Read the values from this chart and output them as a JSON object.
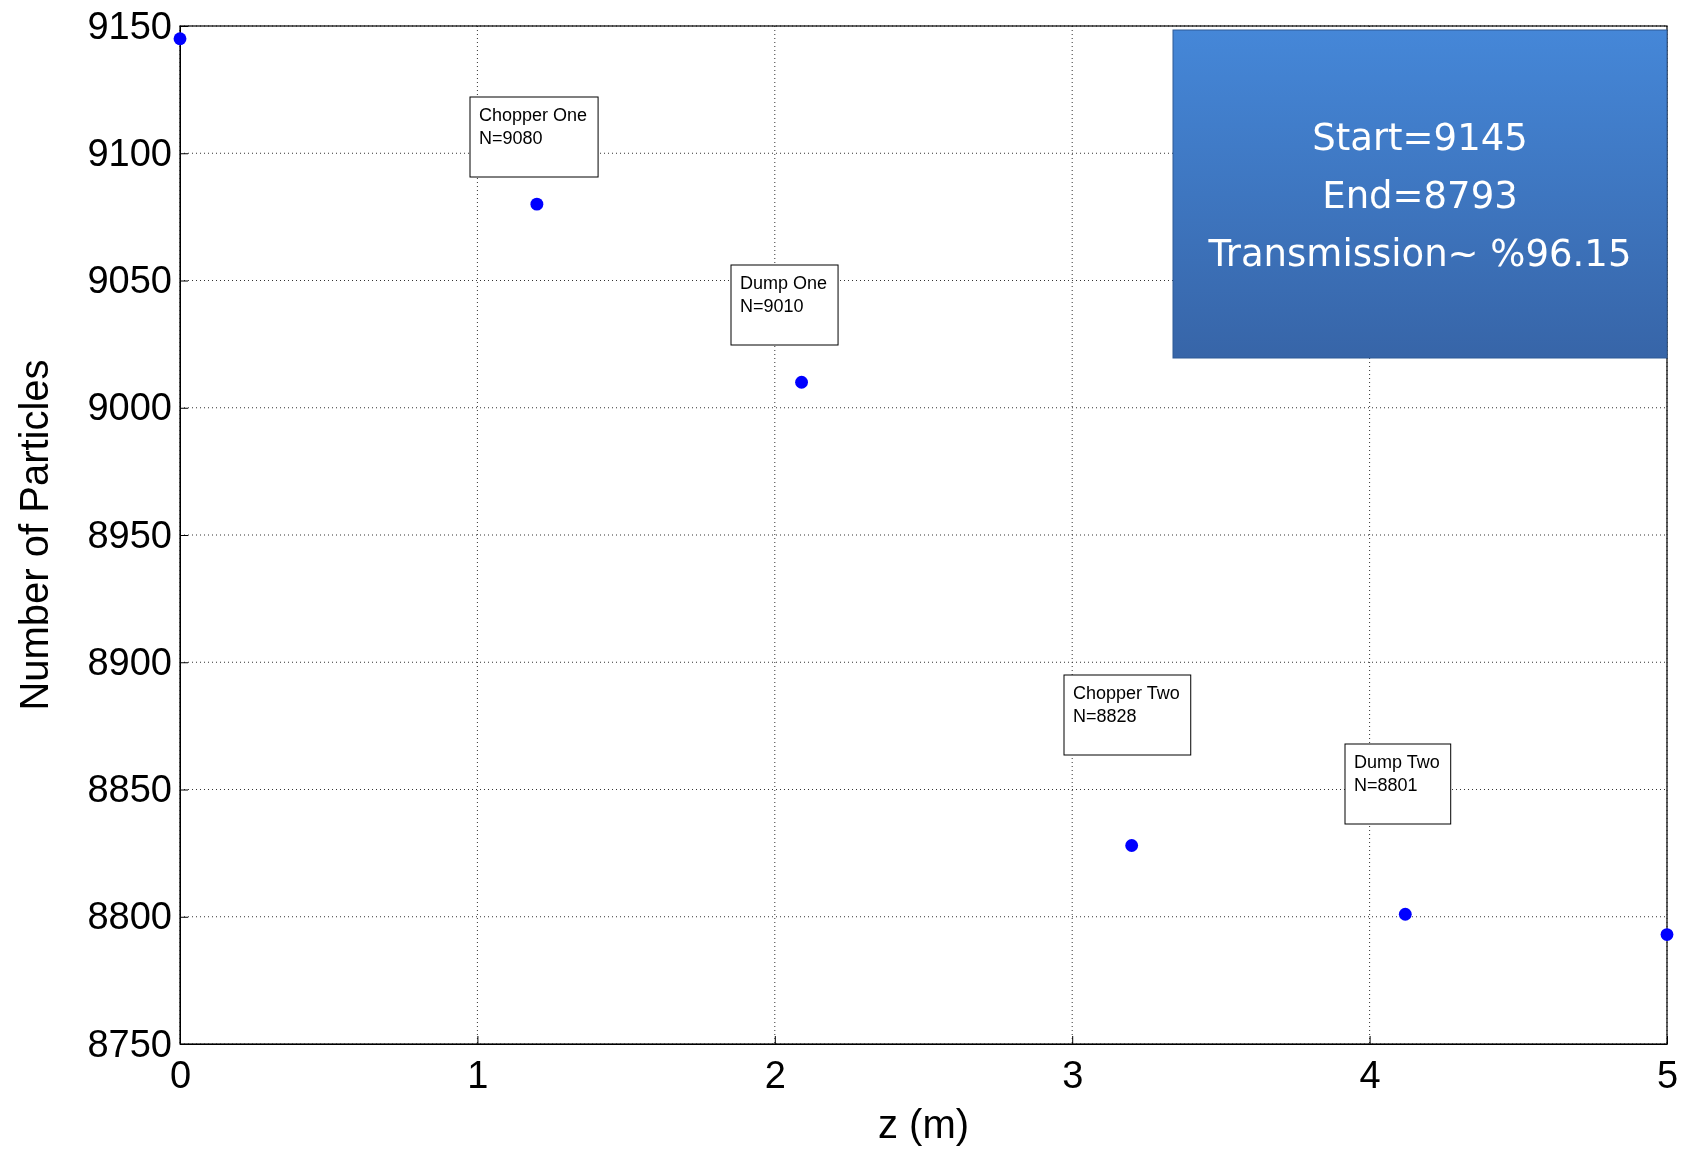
{
  "chart_data": {
    "type": "scatter",
    "xlabel": "z (m)",
    "ylabel": "Number of Particles",
    "x": [
      0,
      1.2,
      2.09,
      3.2,
      4.12,
      5
    ],
    "values": [
      9145,
      9080,
      9010,
      8828,
      8801,
      8793
    ],
    "color": "#0000ff",
    "marker": "circle",
    "xlim": [
      0,
      5
    ],
    "xticks": [
      0,
      1,
      2,
      3,
      4,
      5
    ],
    "ylim": [
      8750,
      9150
    ],
    "yticks": [
      8750,
      8800,
      8850,
      8900,
      8950,
      9000,
      9050,
      9100,
      9150
    ],
    "grid": true,
    "annotations": [
      "Chopper One\nN=9080",
      "Dump One\nN=9010",
      "Chopper Two\nN=8828",
      "Dump Two\nN=8801",
      "Start=9145\nEnd=8793\nTransmission~ %96.15"
    ]
  }
}
